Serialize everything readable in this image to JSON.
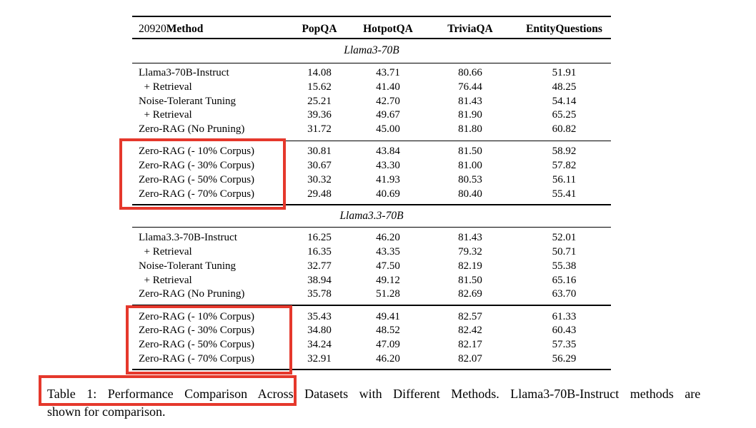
{
  "annotation_color": "#e5382c",
  "table": {
    "header": {
      "line_number": "20920",
      "method_label": "Method",
      "columns": [
        "PopQA",
        "HotpotQA",
        "TriviaQA",
        "EntityQuestions"
      ]
    },
    "sections": [
      {
        "title": "Llama3-70B",
        "groups": [
          {
            "highlighted": false,
            "rows": [
              {
                "method": "Llama3-70B-Instruct",
                "values": [
                  "14.08",
                  "43.71",
                  "80.66",
                  "51.91"
                ]
              },
              {
                "method": "  + Retrieval",
                "values": [
                  "15.62",
                  "41.40",
                  "76.44",
                  "48.25"
                ]
              },
              {
                "method": "Noise-Tolerant Tuning",
                "values": [
                  "25.21",
                  "42.70",
                  "81.43",
                  "54.14"
                ]
              },
              {
                "method": "  + Retrieval",
                "values": [
                  "39.36",
                  "49.67",
                  "81.90",
                  "65.25"
                ]
              },
              {
                "method": "Zero-RAG (No Pruning)",
                "values": [
                  "31.72",
                  "45.00",
                  "81.80",
                  "60.82"
                ]
              }
            ]
          },
          {
            "highlighted": true,
            "rows": [
              {
                "method": "Zero-RAG (- 10% Corpus)",
                "values": [
                  "30.81",
                  "43.84",
                  "81.50",
                  "58.92"
                ]
              },
              {
                "method": "Zero-RAG (- 30% Corpus)",
                "values": [
                  "30.67",
                  "43.30",
                  "81.00",
                  "57.82"
                ]
              },
              {
                "method": "Zero-RAG (- 50% Corpus)",
                "values": [
                  "30.32",
                  "41.93",
                  "80.53",
                  "56.11"
                ]
              },
              {
                "method": "Zero-RAG (- 70% Corpus)",
                "values": [
                  "29.48",
                  "40.69",
                  "80.40",
                  "55.41"
                ]
              }
            ]
          }
        ]
      },
      {
        "title": "Llama3.3-70B",
        "groups": [
          {
            "highlighted": false,
            "rows": [
              {
                "method": "Llama3.3-70B-Instruct",
                "values": [
                  "16.25",
                  "46.20",
                  "81.43",
                  "52.01"
                ]
              },
              {
                "method": "  + Retrieval",
                "values": [
                  "16.35",
                  "43.35",
                  "79.32",
                  "50.71"
                ]
              },
              {
                "method": "Noise-Tolerant Tuning",
                "values": [
                  "32.77",
                  "47.50",
                  "82.19",
                  "55.38"
                ]
              },
              {
                "method": "  + Retrieval",
                "values": [
                  "38.94",
                  "49.12",
                  "81.50",
                  "65.16"
                ]
              },
              {
                "method": "Zero-RAG (No Pruning)",
                "values": [
                  "35.78",
                  "51.28",
                  "82.69",
                  "63.70"
                ]
              }
            ]
          },
          {
            "highlighted": true,
            "rows": [
              {
                "method": "Zero-RAG (- 10% Corpus)",
                "values": [
                  "35.43",
                  "49.41",
                  "82.57",
                  "61.33"
                ]
              },
              {
                "method": "Zero-RAG (- 30% Corpus)",
                "values": [
                  "34.80",
                  "48.52",
                  "82.42",
                  "60.43"
                ]
              },
              {
                "method": "Zero-RAG (- 50% Corpus)",
                "values": [
                  "34.24",
                  "47.09",
                  "82.17",
                  "57.35"
                ]
              },
              {
                "method": "Zero-RAG (- 70% Corpus)",
                "values": [
                  "32.91",
                  "46.20",
                  "82.07",
                  "56.29"
                ]
              }
            ]
          }
        ]
      }
    ]
  },
  "caption": {
    "line1": "Table 1: Performance Comparison Across Datasets with Different Methods. Llama3-70B-Instruct methods are",
    "line2": "shown for comparison."
  }
}
